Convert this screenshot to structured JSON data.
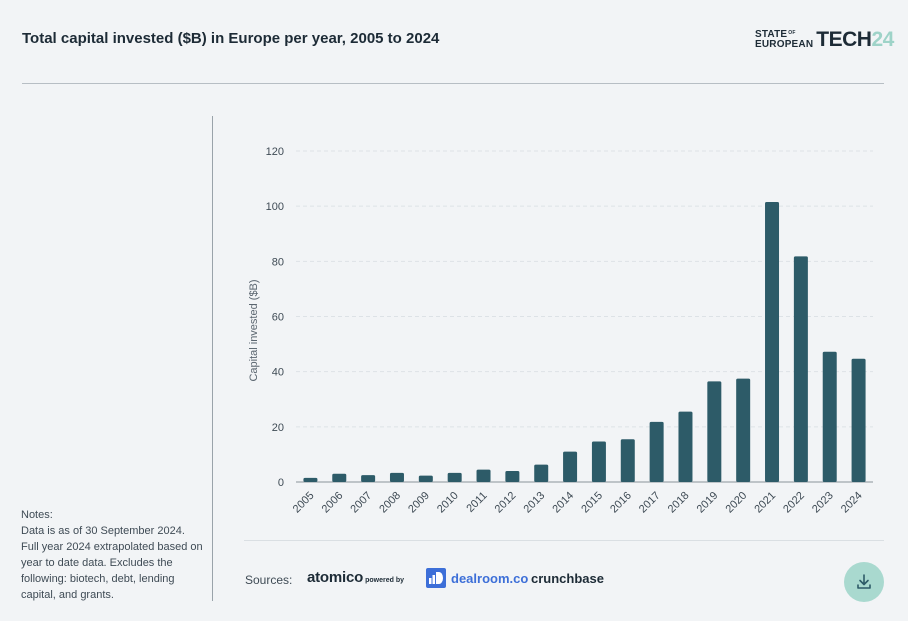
{
  "header": {
    "title": "Total capital invested ($B) in Europe per year, 2005 to 2024",
    "logo": {
      "line1": "STATE",
      "of": "OF",
      "line2": "EUROPEAN",
      "tech": "TECH",
      "num": "24"
    }
  },
  "notes": {
    "heading": "Notes:",
    "lines": [
      "Data is as of 30 September 2024.",
      "Full year 2024 extrapolated based on year to date data. Excludes the following: biotech, debt, lending capital, and grants."
    ]
  },
  "sources": {
    "label": "Sources:",
    "atomico": "atomico",
    "powered_by": "powered by",
    "dealroom": "dealroom.co",
    "crunchbase": "crunchbase"
  },
  "colors": {
    "bar": "#2d5b68",
    "accent": "#a9d9cf",
    "grid": "#dde2e6"
  },
  "icons": {
    "download": "download-icon"
  },
  "chart_data": {
    "type": "bar",
    "categories": [
      "2005",
      "2006",
      "2007",
      "2008",
      "2009",
      "2010",
      "2011",
      "2012",
      "2013",
      "2014",
      "2015",
      "2016",
      "2017",
      "2018",
      "2019",
      "2020",
      "2021",
      "2022",
      "2023",
      "2024"
    ],
    "values": [
      1.5,
      3,
      2.5,
      3.3,
      2.3,
      3.3,
      4.5,
      4,
      6.3,
      11,
      14.7,
      15.5,
      21.8,
      25.5,
      36.5,
      37.5,
      101.5,
      81.8,
      47.2,
      44.7
    ],
    "ylabel": "Capital invested ($B)",
    "ylim": [
      0,
      120
    ],
    "yticks": [
      0,
      20,
      40,
      60,
      80,
      100,
      120
    ],
    "grid": true
  }
}
